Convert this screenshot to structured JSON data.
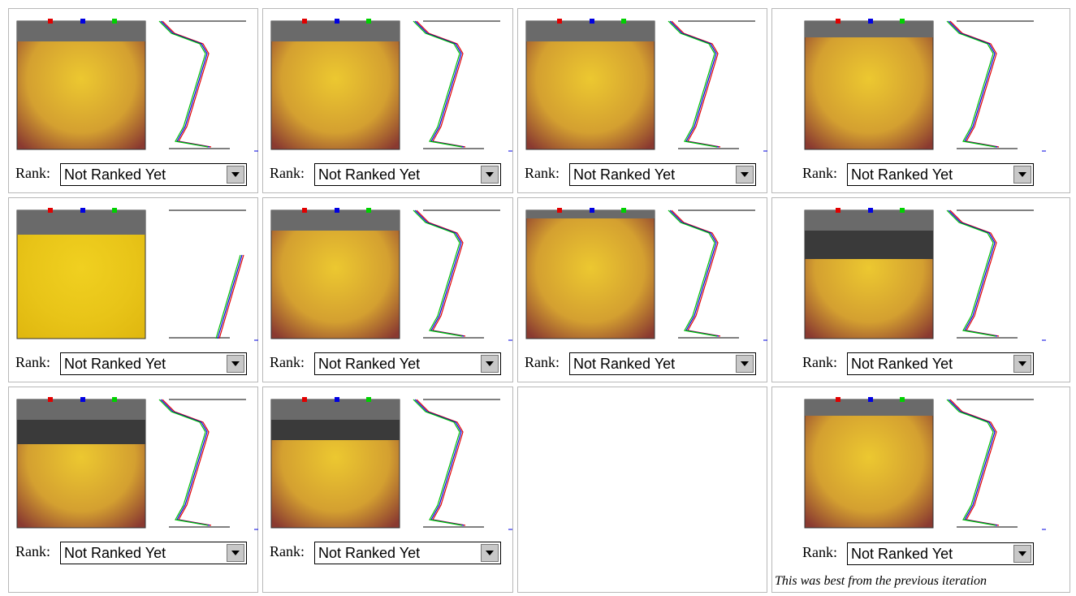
{
  "rows": [
    [
      {
        "label": "Rank:",
        "selection": "Not Ranked Yet"
      },
      {
        "label": "Rank:",
        "selection": "Not Ranked Yet"
      },
      {
        "label": "Rank:",
        "selection": "Not Ranked Yet"
      },
      {
        "label": "Rank:",
        "selection": "Not Ranked Yet"
      }
    ],
    [
      {
        "label": "Rank:",
        "selection": "Not Ranked Yet"
      },
      {
        "label": "Rank:",
        "selection": "Not Ranked Yet"
      },
      {
        "label": "Rank:",
        "selection": "Not Ranked Yet"
      },
      {
        "label": "Rank:",
        "selection": "Not Ranked Yet"
      }
    ],
    [
      {
        "label": "Rank:",
        "selection": "Not Ranked Yet"
      },
      {
        "label": "Rank:",
        "selection": "Not Ranked Yet"
      },
      null,
      {
        "label": "Rank:",
        "selection": "Not Ranked Yet",
        "note": "This was best from the previous iteration"
      }
    ]
  ]
}
